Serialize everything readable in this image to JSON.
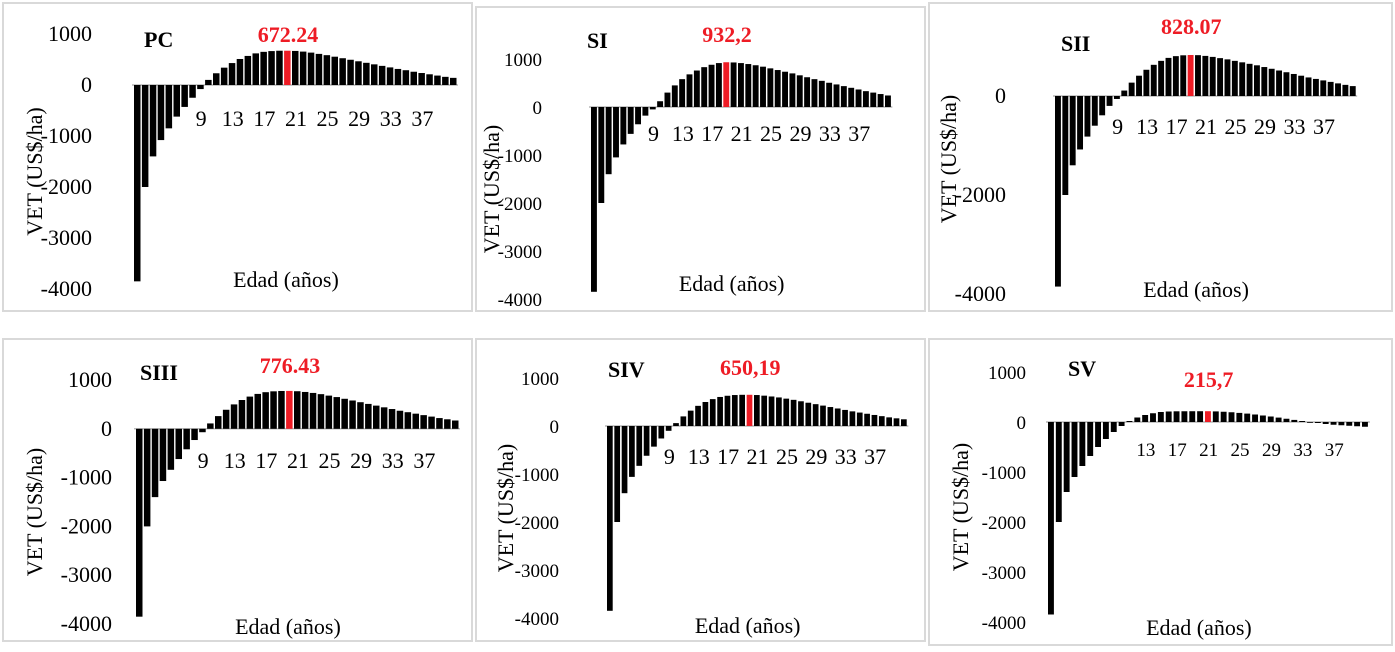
{
  "chart_data": [
    {
      "type": "bar",
      "id": "pc",
      "title": "PC",
      "peak_label": "672.24",
      "peak_index": 19,
      "xlabel": "Edad (años)",
      "ylabel": "VET (US$/ha)",
      "ylim": [
        -4000,
        1000
      ],
      "yticks": [
        1000,
        0,
        -1000,
        -2000,
        -3000,
        -4000
      ],
      "xticks": [
        "9",
        "13",
        "17",
        "21",
        "25",
        "29",
        "33",
        "37"
      ],
      "xtick_indices": [
        8,
        12,
        16,
        20,
        24,
        28,
        32,
        36
      ],
      "values": [
        -3850,
        -2000,
        -1400,
        -1080,
        -850,
        -620,
        -430,
        -250,
        -80,
        100,
        230,
        340,
        430,
        510,
        570,
        620,
        650,
        665,
        672,
        672.24,
        668,
        655,
        635,
        610,
        585,
        555,
        525,
        495,
        465,
        435,
        405,
        375,
        345,
        315,
        290,
        260,
        235,
        210,
        185,
        160,
        140
      ],
      "accent_color": "#ee1c25",
      "bar_color": "#000000"
    },
    {
      "type": "bar",
      "id": "si",
      "title": "SI",
      "peak_label": "932,2",
      "peak_index": 18,
      "xlabel": "Edad (años)",
      "ylabel": "VET (US$/ha)",
      "ylim": [
        -4000,
        1000
      ],
      "yticks": [
        1000,
        0,
        -1000,
        -2000,
        -3000,
        -4000
      ],
      "xticks": [
        "9",
        "13",
        "17",
        "21",
        "25",
        "29",
        "33",
        "37"
      ],
      "xtick_indices": [
        8,
        12,
        16,
        20,
        24,
        28,
        32,
        36
      ],
      "values": [
        -3850,
        -2000,
        -1400,
        -1050,
        -780,
        -560,
        -360,
        -180,
        -50,
        120,
        300,
        450,
        580,
        680,
        760,
        830,
        880,
        915,
        932.2,
        928,
        915,
        895,
        870,
        840,
        805,
        770,
        735,
        700,
        660,
        620,
        580,
        545,
        505,
        470,
        435,
        400,
        365,
        330,
        300,
        270,
        240
      ],
      "accent_color": "#ee1c25",
      "bar_color": "#000000"
    },
    {
      "type": "bar",
      "id": "sii",
      "title": "SII",
      "peak_label": "828.07",
      "peak_index": 18,
      "xlabel": "Edad (años)",
      "ylabel": "VET (US$/ha)",
      "ylim": [
        -4000,
        1000
      ],
      "yticks": [
        0,
        -2000,
        -4000
      ],
      "xticks": [
        "9",
        "13",
        "17",
        "21",
        "25",
        "29",
        "33",
        "37"
      ],
      "xtick_indices": [
        8,
        12,
        16,
        20,
        24,
        28,
        32,
        36
      ],
      "values": [
        -3850,
        -2000,
        -1400,
        -1080,
        -820,
        -600,
        -390,
        -200,
        -60,
        110,
        270,
        410,
        530,
        630,
        710,
        770,
        805,
        822,
        828.07,
        825,
        810,
        790,
        765,
        740,
        710,
        680,
        650,
        620,
        585,
        550,
        515,
        480,
        445,
        410,
        375,
        345,
        315,
        285,
        255,
        225,
        200
      ],
      "accent_color": "#ee1c25",
      "bar_color": "#000000"
    },
    {
      "type": "bar",
      "id": "siii",
      "title": "SIII",
      "peak_label": "776.43",
      "peak_index": 19,
      "xlabel": "Edad (años)",
      "ylabel": "VET (US$/ha)",
      "ylim": [
        -4000,
        1000
      ],
      "yticks": [
        1000,
        0,
        -1000,
        -2000,
        -3000,
        -4000
      ],
      "xticks": [
        "9",
        "13",
        "17",
        "21",
        "25",
        "29",
        "33",
        "37"
      ],
      "xtick_indices": [
        8,
        12,
        16,
        20,
        24,
        28,
        32,
        36
      ],
      "values": [
        -3850,
        -2000,
        -1400,
        -1070,
        -840,
        -620,
        -420,
        -230,
        -70,
        110,
        260,
        390,
        500,
        590,
        660,
        715,
        750,
        768,
        775,
        776.43,
        770,
        755,
        735,
        710,
        680,
        650,
        615,
        580,
        545,
        510,
        475,
        440,
        405,
        370,
        340,
        310,
        280,
        250,
        220,
        195,
        170
      ],
      "accent_color": "#ee1c25",
      "bar_color": "#000000"
    },
    {
      "type": "bar",
      "id": "siv",
      "title": "SIV",
      "peak_label": "650,19",
      "peak_index": 19,
      "xlabel": "Edad (años)",
      "ylabel": "VET (US$/ha)",
      "ylim": [
        -4000,
        1000
      ],
      "yticks": [
        1000,
        0,
        -1000,
        -2000,
        -3000,
        -4000
      ],
      "xticks": [
        "9",
        "13",
        "17",
        "21",
        "25",
        "29",
        "33",
        "37"
      ],
      "xtick_indices": [
        8,
        12,
        16,
        20,
        24,
        28,
        32,
        36
      ],
      "values": [
        -3850,
        -2000,
        -1400,
        -1060,
        -830,
        -620,
        -430,
        -260,
        -100,
        60,
        200,
        320,
        420,
        500,
        560,
        605,
        630,
        645,
        650,
        650.19,
        645,
        632,
        615,
        595,
        570,
        545,
        515,
        485,
        455,
        425,
        395,
        365,
        335,
        305,
        280,
        255,
        230,
        205,
        180,
        160,
        140
      ],
      "accent_color": "#ee1c25",
      "bar_color": "#000000"
    },
    {
      "type": "bar",
      "id": "sv",
      "title": "SV",
      "peak_label": "215,7",
      "peak_index": 20,
      "xlabel": "Edad (años)",
      "ylabel": "VET (US$/ha)",
      "ylim": [
        -4000,
        1000
      ],
      "yticks": [
        1000,
        0,
        -1000,
        -2000,
        -3000,
        -4000
      ],
      "xticks": [
        "13",
        "17",
        "21",
        "25",
        "29",
        "33",
        "37"
      ],
      "xtick_indices": [
        12,
        16,
        20,
        24,
        28,
        32,
        36
      ],
      "values": [
        -3850,
        -2000,
        -1400,
        -1100,
        -880,
        -680,
        -500,
        -340,
        -200,
        -80,
        20,
        90,
        140,
        175,
        200,
        210,
        214,
        215,
        215.5,
        215.6,
        215.7,
        212,
        205,
        195,
        182,
        168,
        150,
        130,
        110,
        88,
        65,
        42,
        20,
        0,
        -20,
        -40,
        -55,
        -65,
        -75,
        -85,
        -95
      ],
      "accent_color": "#ee1c25",
      "bar_color": "#000000"
    }
  ]
}
